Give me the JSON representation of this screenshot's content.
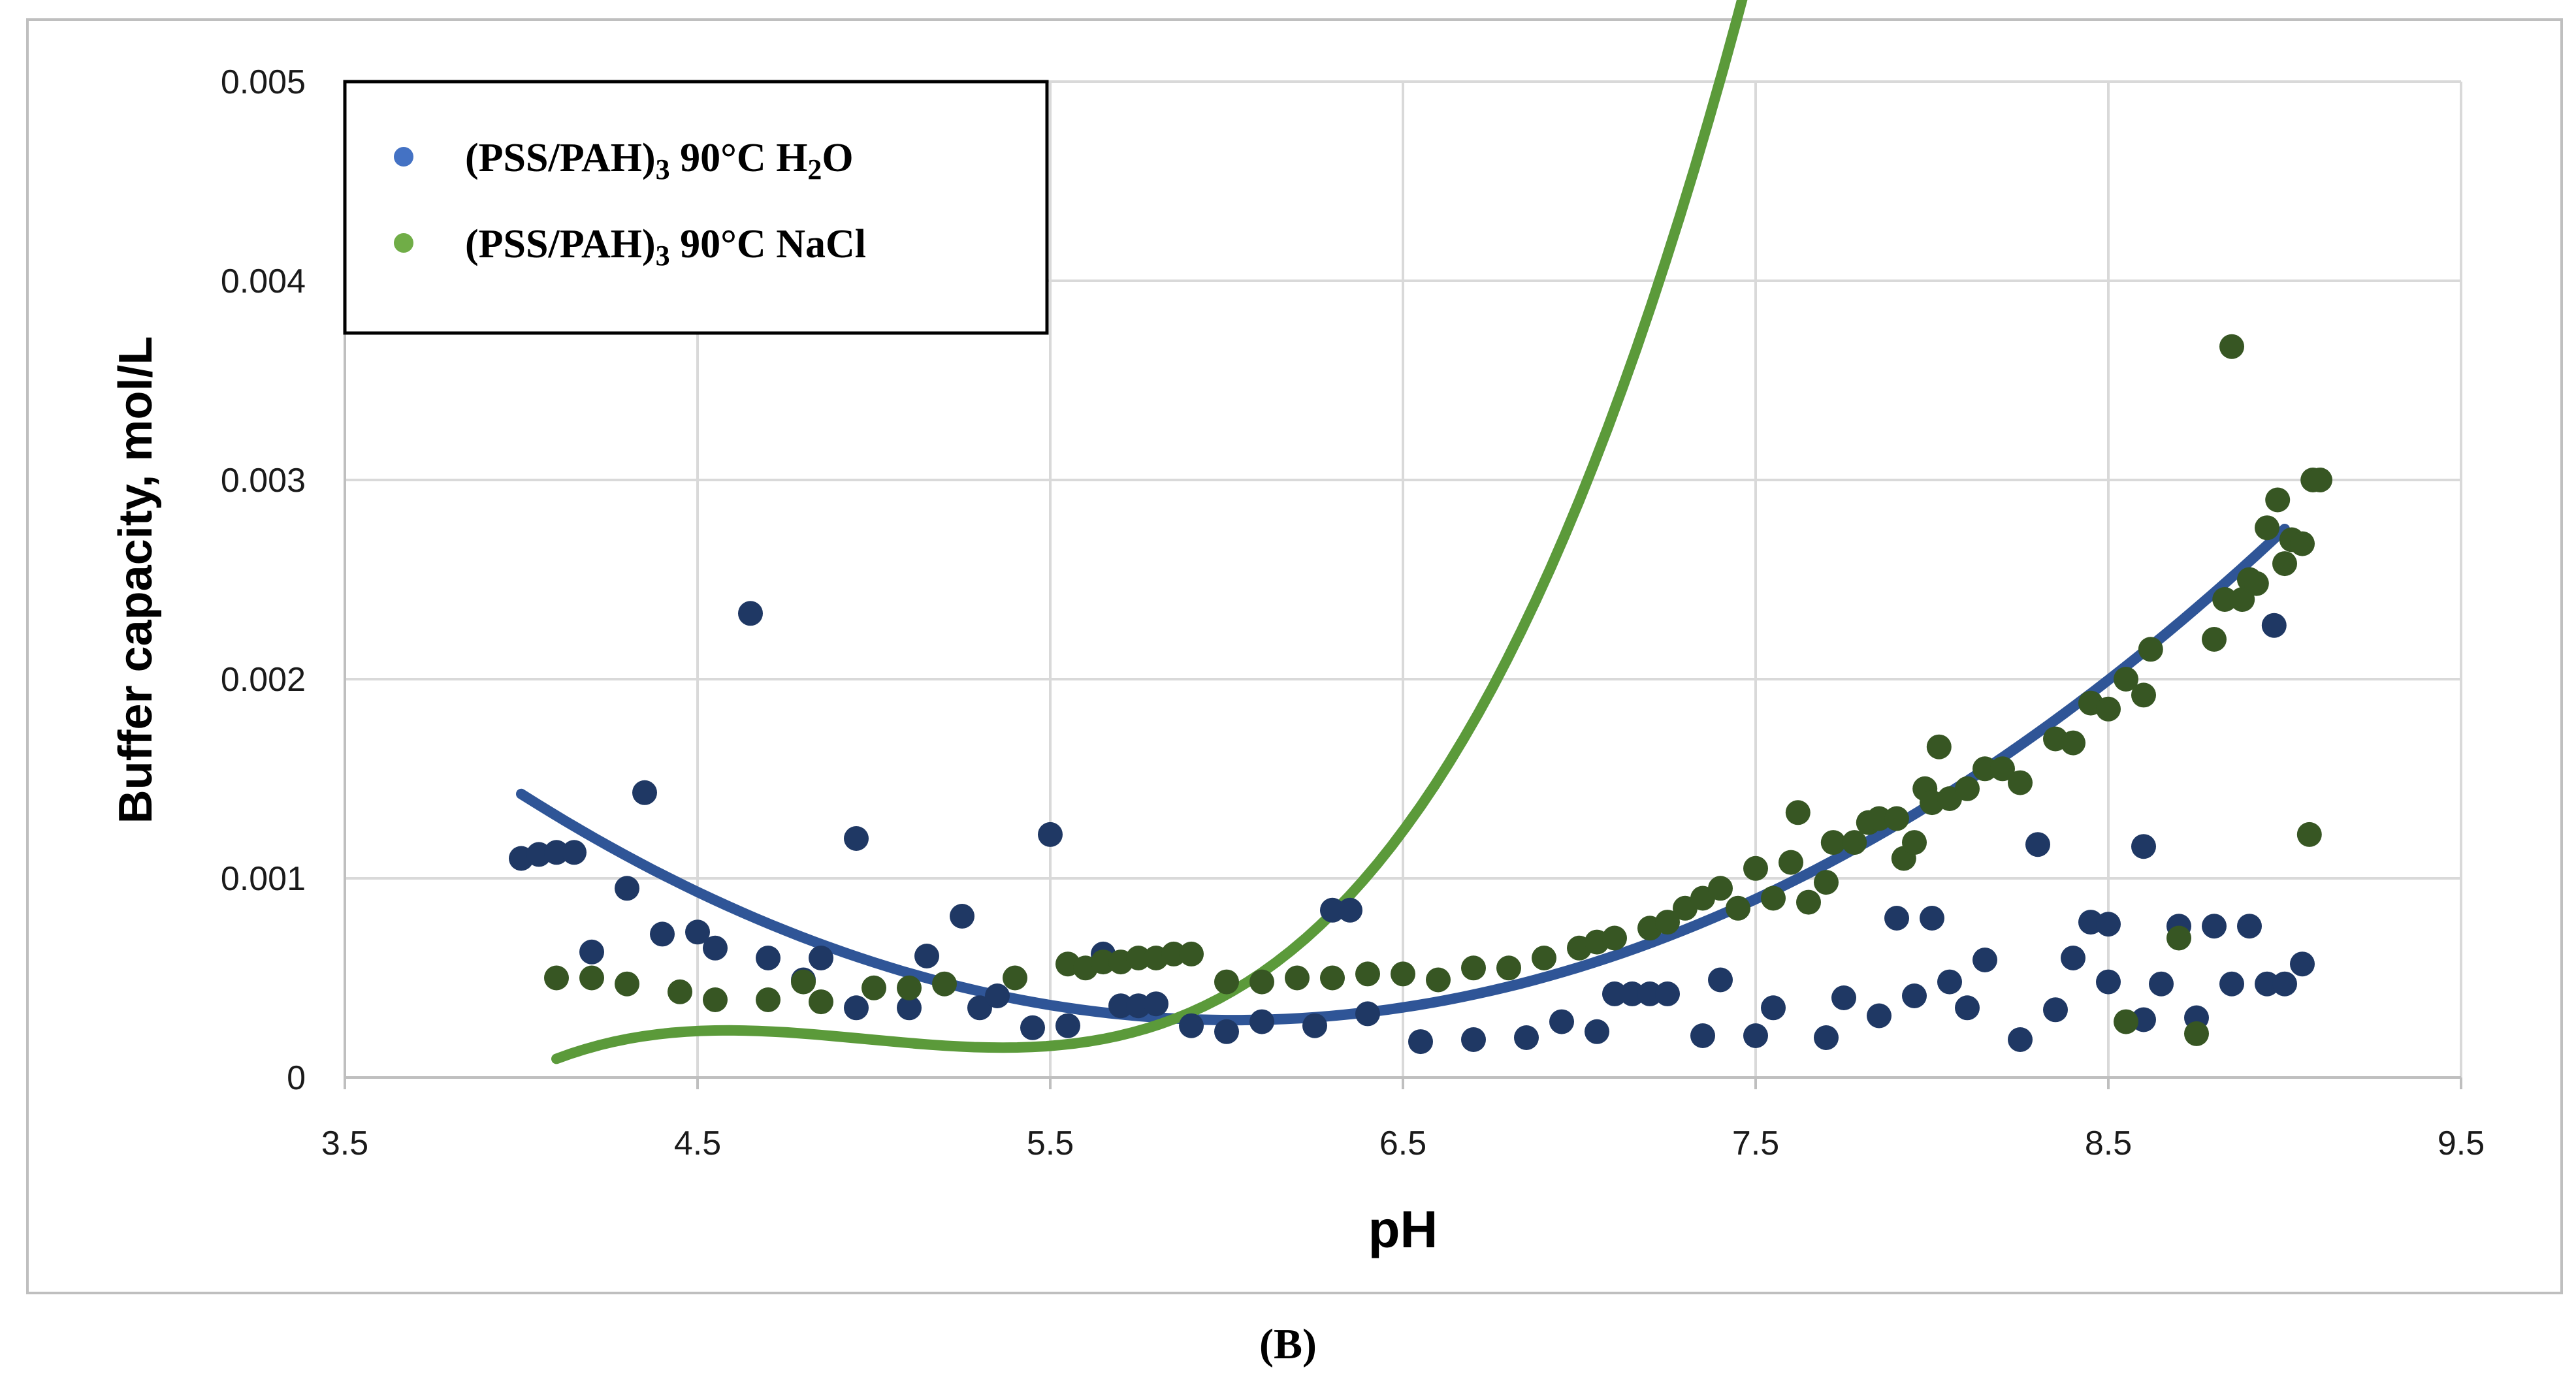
{
  "chart_data": {
    "type": "scatter",
    "title": "",
    "xlabel": "pH",
    "ylabel": "Buffer capacity, mol/L",
    "caption": "(B)",
    "xlim": [
      3.5,
      9.5
    ],
    "ylim": [
      0,
      0.005
    ],
    "x_ticks": [
      3.5,
      4.5,
      5.5,
      6.5,
      7.5,
      8.5,
      9.5
    ],
    "x_tick_labels": [
      "3.5",
      "4.5",
      "5.5",
      "6.5",
      "7.5",
      "8.5",
      "9.5"
    ],
    "y_ticks": [
      0,
      0.001,
      0.002,
      0.003,
      0.004,
      0.005
    ],
    "y_tick_labels": [
      "0",
      "0.001",
      "0.002",
      "0.003",
      "0.004",
      "0.005"
    ],
    "grid": true,
    "legend_position": "top-left",
    "series": [
      {
        "name": "(PSS/PAH)",
        "sub": "3",
        "suffix": " 90°C H",
        "sub2": "2",
        "suffix2": "O",
        "legend_color": "#4472c4",
        "marker_color": "#1f3864",
        "trend_color": "#2f5597",
        "trend_coeffs": [
          0.010366,
          -0.0033474,
          0.00027796
        ],
        "trend_range": [
          4.0,
          9.0
        ],
        "points": [
          [
            4.0,
            0.0011
          ],
          [
            4.05,
            0.00112
          ],
          [
            4.1,
            0.00113
          ],
          [
            4.15,
            0.00113
          ],
          [
            4.2,
            0.00063
          ],
          [
            4.3,
            0.00095
          ],
          [
            4.35,
            0.00143
          ],
          [
            4.4,
            0.00072
          ],
          [
            4.5,
            0.00073
          ],
          [
            4.55,
            0.00065
          ],
          [
            4.65,
            0.00233
          ],
          [
            4.7,
            0.0006
          ],
          [
            4.8,
            0.00049
          ],
          [
            4.85,
            0.0006
          ],
          [
            4.95,
            0.0012
          ],
          [
            4.95,
            0.00035
          ],
          [
            5.1,
            0.00035
          ],
          [
            5.15,
            0.00061
          ],
          [
            5.25,
            0.00081
          ],
          [
            5.3,
            0.00035
          ],
          [
            5.35,
            0.00041
          ],
          [
            5.45,
            0.00025
          ],
          [
            5.5,
            0.00122
          ],
          [
            5.55,
            0.00026
          ],
          [
            5.65,
            0.00062
          ],
          [
            5.7,
            0.00036
          ],
          [
            5.75,
            0.00036
          ],
          [
            5.8,
            0.00037
          ],
          [
            5.9,
            0.00026
          ],
          [
            6.0,
            0.00023
          ],
          [
            6.1,
            0.00028
          ],
          [
            6.25,
            0.00026
          ],
          [
            6.3,
            0.00084
          ],
          [
            6.35,
            0.00084
          ],
          [
            6.4,
            0.00032
          ],
          [
            6.55,
            0.00018
          ],
          [
            6.7,
            0.00019
          ],
          [
            6.85,
            0.0002
          ],
          [
            6.95,
            0.00028
          ],
          [
            7.05,
            0.00023
          ],
          [
            7.1,
            0.00042
          ],
          [
            7.15,
            0.00042
          ],
          [
            7.2,
            0.00042
          ],
          [
            7.25,
            0.00042
          ],
          [
            7.35,
            0.00021
          ],
          [
            7.4,
            0.00049
          ],
          [
            7.5,
            0.00021
          ],
          [
            7.55,
            0.00035
          ],
          [
            7.7,
            0.0002
          ],
          [
            7.75,
            0.0004
          ],
          [
            7.85,
            0.00031
          ],
          [
            7.9,
            0.0008
          ],
          [
            7.95,
            0.00041
          ],
          [
            8.0,
            0.0008
          ],
          [
            8.05,
            0.00048
          ],
          [
            8.1,
            0.00035
          ],
          [
            8.15,
            0.00059
          ],
          [
            8.25,
            0.00019
          ],
          [
            8.3,
            0.00117
          ],
          [
            8.35,
            0.00034
          ],
          [
            8.4,
            0.0006
          ],
          [
            8.45,
            0.00078
          ],
          [
            8.5,
            0.00048
          ],
          [
            8.5,
            0.00077
          ],
          [
            8.6,
            0.00029
          ],
          [
            8.6,
            0.00116
          ],
          [
            8.65,
            0.00047
          ],
          [
            8.7,
            0.00076
          ],
          [
            8.75,
            0.0003
          ],
          [
            8.8,
            0.00076
          ],
          [
            8.85,
            0.00047
          ],
          [
            8.9,
            0.00076
          ],
          [
            8.95,
            0.00047
          ],
          [
            8.97,
            0.00227
          ],
          [
            9.0,
            0.00047
          ],
          [
            9.05,
            0.00057
          ]
        ]
      },
      {
        "name": "(PSS/PAH)",
        "sub": "3",
        "suffix": " 90°C NaCl",
        "sub2": "",
        "suffix2": "",
        "legend_color": "#70ad47",
        "marker_color": "#375623",
        "trend_color": "#5b9a3a",
        "trend_coeffs": [
          -0.044107,
          0.027046,
          -0.0054696,
          0.00036645
        ],
        "trend_range": [
          4.1,
          9.0
        ],
        "points": [
          [
            4.1,
            0.0005
          ],
          [
            4.2,
            0.0005
          ],
          [
            4.3,
            0.00047
          ],
          [
            4.45,
            0.00043
          ],
          [
            4.55,
            0.00039
          ],
          [
            4.7,
            0.00039
          ],
          [
            4.8,
            0.00048
          ],
          [
            4.85,
            0.00038
          ],
          [
            5.0,
            0.00045
          ],
          [
            5.1,
            0.00045
          ],
          [
            5.2,
            0.00047
          ],
          [
            5.4,
            0.0005
          ],
          [
            5.55,
            0.00057
          ],
          [
            5.6,
            0.00055
          ],
          [
            5.65,
            0.00058
          ],
          [
            5.7,
            0.00058
          ],
          [
            5.75,
            0.0006
          ],
          [
            5.8,
            0.0006
          ],
          [
            5.85,
            0.00062
          ],
          [
            5.9,
            0.00062
          ],
          [
            6.0,
            0.00048
          ],
          [
            6.1,
            0.00048
          ],
          [
            6.2,
            0.0005
          ],
          [
            6.3,
            0.0005
          ],
          [
            6.4,
            0.00052
          ],
          [
            6.5,
            0.00052
          ],
          [
            6.6,
            0.00049
          ],
          [
            6.7,
            0.00055
          ],
          [
            6.8,
            0.00055
          ],
          [
            6.9,
            0.0006
          ],
          [
            7.0,
            0.00065
          ],
          [
            7.05,
            0.00068
          ],
          [
            7.1,
            0.0007
          ],
          [
            7.2,
            0.00075
          ],
          [
            7.25,
            0.00078
          ],
          [
            7.3,
            0.00085
          ],
          [
            7.35,
            0.0009
          ],
          [
            7.4,
            0.00095
          ],
          [
            7.45,
            0.00085
          ],
          [
            7.5,
            0.00105
          ],
          [
            7.55,
            0.0009
          ],
          [
            7.6,
            0.00108
          ],
          [
            7.62,
            0.00133
          ],
          [
            7.65,
            0.00088
          ],
          [
            7.7,
            0.00098
          ],
          [
            7.72,
            0.00118
          ],
          [
            7.78,
            0.00118
          ],
          [
            7.82,
            0.00128
          ],
          [
            7.85,
            0.0013
          ],
          [
            7.9,
            0.0013
          ],
          [
            7.92,
            0.0011
          ],
          [
            7.95,
            0.00118
          ],
          [
            7.98,
            0.00145
          ],
          [
            8.0,
            0.00138
          ],
          [
            8.02,
            0.00166
          ],
          [
            8.05,
            0.0014
          ],
          [
            8.1,
            0.00145
          ],
          [
            8.15,
            0.00155
          ],
          [
            8.2,
            0.00155
          ],
          [
            8.25,
            0.00148
          ],
          [
            8.35,
            0.0017
          ],
          [
            8.4,
            0.00168
          ],
          [
            8.45,
            0.00188
          ],
          [
            8.5,
            0.00185
          ],
          [
            8.55,
            0.002
          ],
          [
            8.6,
            0.00192
          ],
          [
            8.62,
            0.00215
          ],
          [
            8.55,
            0.00028
          ],
          [
            8.7,
            0.0007
          ],
          [
            8.75,
            0.00022
          ],
          [
            8.8,
            0.0022
          ],
          [
            8.83,
            0.0024
          ],
          [
            8.85,
            0.00367
          ],
          [
            8.88,
            0.0024
          ],
          [
            8.9,
            0.0025
          ],
          [
            8.92,
            0.00248
          ],
          [
            8.95,
            0.00276
          ],
          [
            8.98,
            0.0029
          ],
          [
            9.0,
            0.00258
          ],
          [
            9.02,
            0.0027
          ],
          [
            9.05,
            0.00268
          ],
          [
            9.07,
            0.00122
          ],
          [
            9.08,
            0.003
          ],
          [
            9.1,
            0.003
          ]
        ]
      }
    ]
  }
}
